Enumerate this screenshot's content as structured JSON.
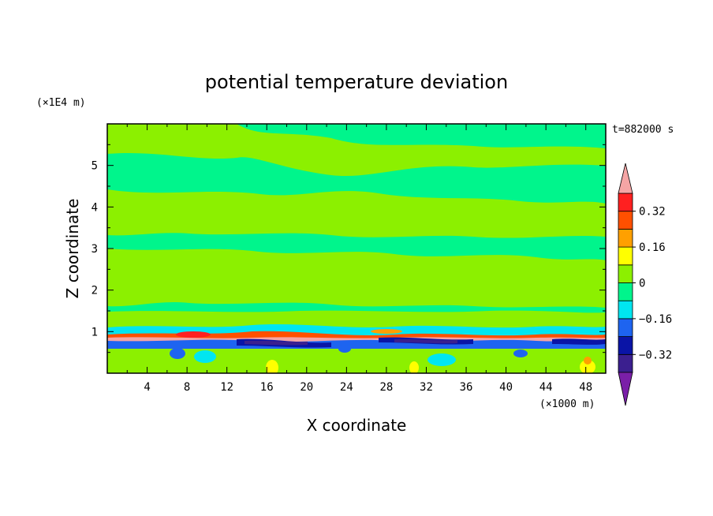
{
  "chart_data": {
    "type": "heatmap",
    "title": "potential temperature deviation",
    "xlabel": "X coordinate",
    "ylabel": "Z coordinate",
    "x_unit": "(×1000 m)",
    "y_unit": "(×1E4 m)",
    "time_label": "t=882000 s",
    "xlim": [
      0,
      50
    ],
    "ylim": [
      0,
      6
    ],
    "x_ticks": [
      4,
      8,
      12,
      16,
      20,
      24,
      28,
      32,
      36,
      40,
      44,
      48
    ],
    "y_ticks": [
      1,
      2,
      3,
      4,
      5
    ],
    "colorbar": {
      "labels": [
        {
          "text": "0.32",
          "value": 0.32
        },
        {
          "text": "0.16",
          "value": 0.16
        },
        {
          "text": "0",
          "value": 0
        },
        {
          "text": "−0.16",
          "value": -0.16
        },
        {
          "text": "−0.32",
          "value": -0.32
        }
      ],
      "levels": [
        -0.4,
        -0.32,
        -0.24,
        -0.16,
        -0.08,
        0,
        0.08,
        0.16,
        0.24,
        0.32,
        0.4
      ],
      "colors": [
        "#7a1fa8",
        "#3b1f8f",
        "#0a14a6",
        "#1e64f0",
        "#00e6f0",
        "#00f58c",
        "#8cf000",
        "#ffff00",
        "#ffa000",
        "#ff5000",
        "#ff2020",
        "#f5a5a5"
      ]
    },
    "field_description_levels": {
      "background": "#00f58c",
      "band_color": "#8cf000"
    }
  }
}
